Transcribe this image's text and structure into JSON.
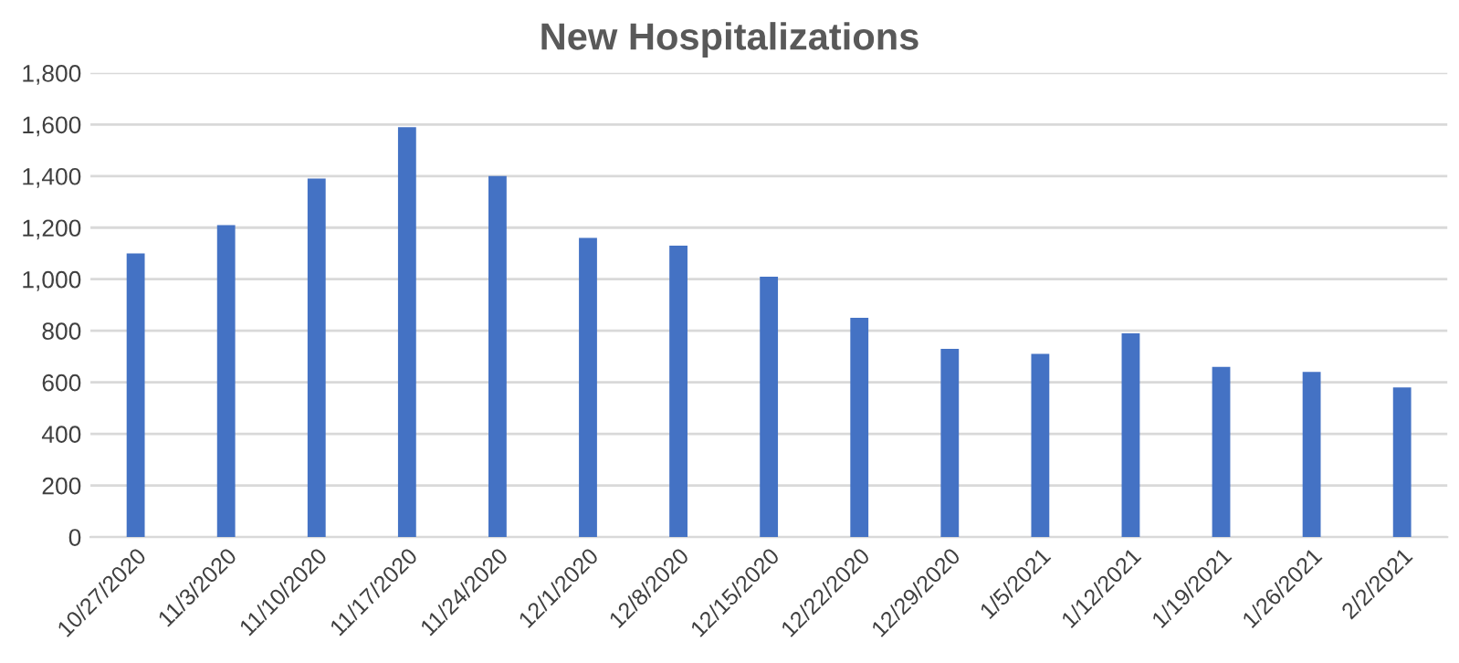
{
  "chart_data": {
    "type": "bar",
    "title": "New Hospitalizations",
    "categories": [
      "10/27/2020",
      "11/3/2020",
      "11/10/2020",
      "11/17/2020",
      "11/24/2020",
      "12/1/2020",
      "12/8/2020",
      "12/15/2020",
      "12/22/2020",
      "12/29/2020",
      "1/5/2021",
      "1/12/2021",
      "1/19/2021",
      "1/26/2021",
      "2/2/2021"
    ],
    "values": [
      1100,
      1210,
      1390,
      1590,
      1400,
      1160,
      1130,
      1010,
      850,
      730,
      710,
      790,
      660,
      640,
      580
    ],
    "color": "#4472c4",
    "ylim": [
      0,
      1800
    ],
    "yticks": [
      0,
      {
        "value": 200,
        "label": "200"
      },
      {
        "value": 400,
        "label": "400"
      },
      {
        "value": 600,
        "label": "600"
      },
      {
        "value": 800,
        "label": "800"
      },
      {
        "value": 1000,
        "label": "1,000"
      },
      {
        "value": 1200,
        "label": "1,200"
      },
      {
        "value": 1400,
        "label": "1,400"
      },
      {
        "value": 1600,
        "label": "1,600"
      },
      {
        "value": 1800,
        "label": "1,800"
      }
    ],
    "grid": "y"
  }
}
